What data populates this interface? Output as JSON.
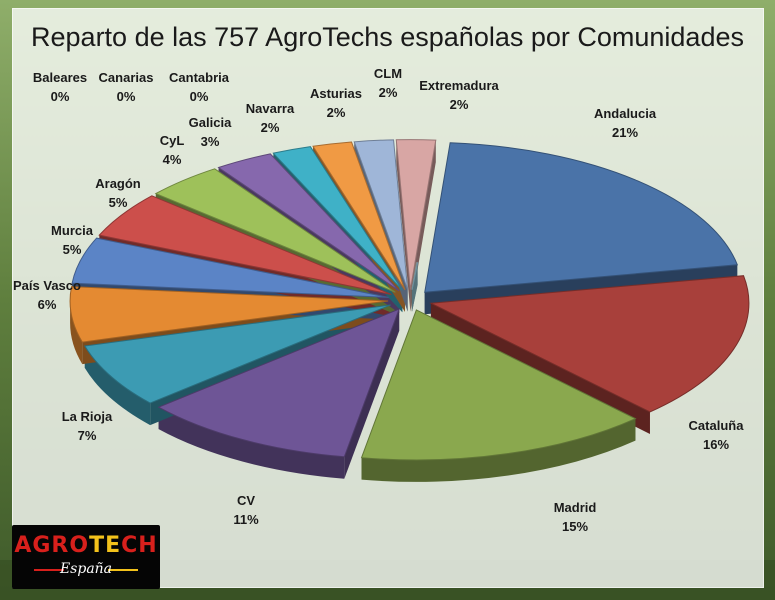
{
  "chart_data": {
    "type": "pie",
    "title": "Reparto de las 757 AgroTechs españolas por Comunidades",
    "categories": [
      "Andalucia",
      "Cataluña",
      "Madrid",
      "CV",
      "La Rioja",
      "País Vasco",
      "Murcia",
      "Aragón",
      "CyL",
      "Galicia",
      "Navarra",
      "Asturias",
      "CLM",
      "Extremadura",
      "Cantabria",
      "Canarias",
      "Baleares"
    ],
    "values": [
      21,
      16,
      15,
      11,
      7,
      6,
      5,
      5,
      4,
      3,
      2,
      2,
      2,
      2,
      0,
      0,
      0
    ],
    "value_labels": [
      "21%",
      "16%",
      "15%",
      "11%",
      "7%",
      "6%",
      "5%",
      "5%",
      "4%",
      "3%",
      "2%",
      "2%",
      "2%",
      "2%",
      "0%",
      "0%",
      "0%"
    ],
    "colors": [
      "#4a73a8",
      "#a8403b",
      "#8aa84e",
      "#6e5596",
      "#3c9bb3",
      "#e48a32",
      "#5b84c6",
      "#cc4f4b",
      "#9ec15a",
      "#8668ad",
      "#3fb1c7",
      "#f09a44",
      "#9fb6d8",
      "#d8a6a4",
      "#c9d9a8",
      "#c2b3d6",
      "#9cd1e0"
    ],
    "style": "3D exploded pie, legend as data labels"
  },
  "logo": {
    "brand_a": "AGRO",
    "brand_b": "TE",
    "brand_c": "CH",
    "sub": "España"
  }
}
